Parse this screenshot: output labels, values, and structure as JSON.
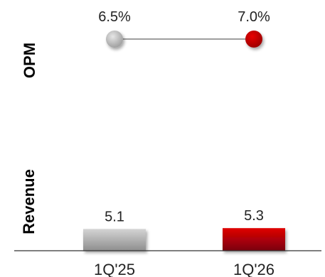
{
  "chart_data": [
    {
      "type": "line",
      "ylabel": "OPM",
      "categories": [
        "1Q'25",
        "1Q'26"
      ],
      "values": [
        6.5,
        7.0
      ],
      "value_labels": [
        "6.5%",
        "7.0%"
      ],
      "point_colors": [
        "#b3b3b3",
        "#c00000"
      ],
      "line_color": "#7f7f7f"
    },
    {
      "type": "bar",
      "ylabel": "Revenue",
      "categories": [
        "1Q'25",
        "1Q'26"
      ],
      "values": [
        5.1,
        5.3
      ],
      "value_labels": [
        "5.1",
        "5.3"
      ],
      "bar_colors": [
        "#b0b0b0",
        "#c00000"
      ]
    }
  ]
}
